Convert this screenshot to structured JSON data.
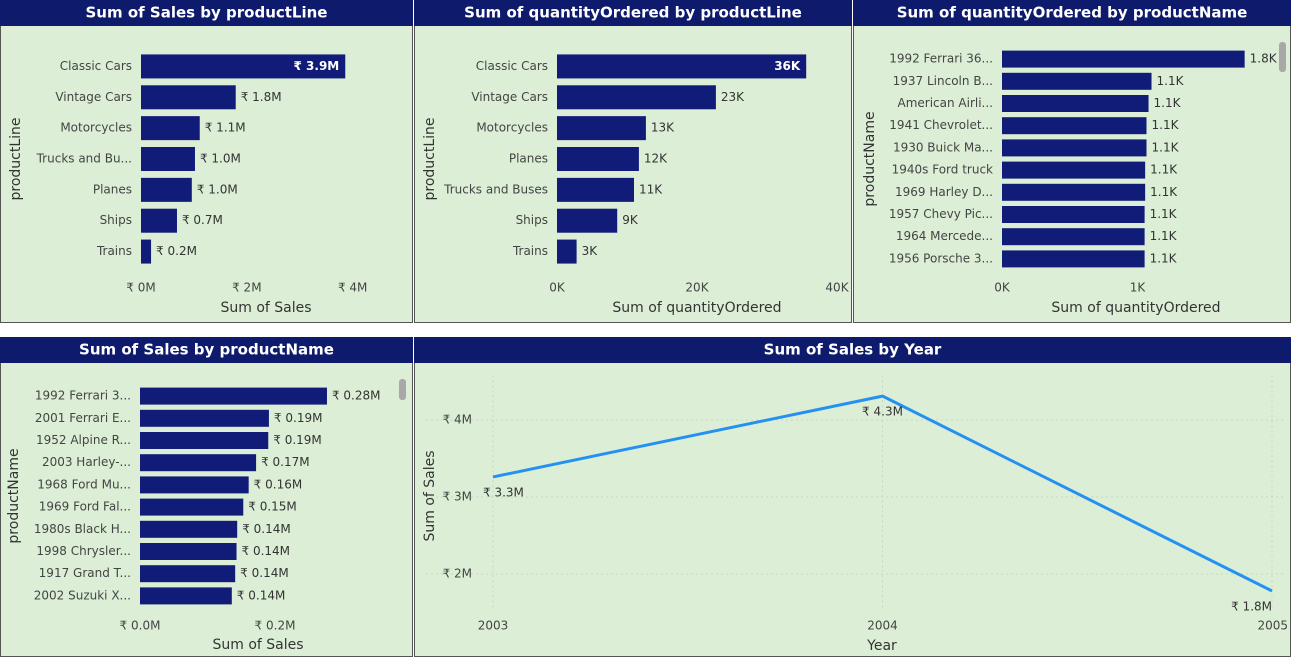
{
  "chart_data": [
    {
      "type": "bar",
      "orientation": "horizontal",
      "title": "Sum of Sales by productLine",
      "x_label": "Sum of Sales",
      "y_label": "productLine",
      "categories": [
        "Classic Cars",
        "Vintage Cars",
        "Motorcycles",
        "Trucks and Bu...",
        "Planes",
        "Ships",
        "Trains"
      ],
      "values": [
        3860000,
        1790000,
        1110000,
        1020000,
        960000,
        680000,
        190000
      ],
      "value_labels": [
        "₹ 3.9M",
        "₹ 1.8M",
        "₹ 1.1M",
        "₹ 1.0M",
        "₹ 1.0M",
        "₹ 0.7M",
        "₹ 0.2M"
      ],
      "color": "#101c78",
      "xlim": [
        0,
        4800000
      ],
      "xticks": [
        {
          "value": 0,
          "label": "₹ 0M"
        },
        {
          "value": 2000000,
          "label": "₹ 2M"
        },
        {
          "value": 4000000,
          "label": "₹ 4M"
        }
      ]
    },
    {
      "type": "bar",
      "orientation": "horizontal",
      "title": "Sum of quantityOrdered by productLine",
      "x_label": "Sum of quantityOrdered",
      "y_label": "productLine",
      "categories": [
        "Classic Cars",
        "Vintage Cars",
        "Motorcycles",
        "Planes",
        "Trucks and Buses",
        "Ships",
        "Trains"
      ],
      "values": [
        35600,
        22700,
        12700,
        11700,
        11000,
        8600,
        2800
      ],
      "value_labels": [
        "36K",
        "23K",
        "13K",
        "12K",
        "11K",
        "9K",
        "3K"
      ],
      "color": "#101c78",
      "xlim": [
        0,
        41000
      ],
      "xticks": [
        {
          "value": 0,
          "label": "0K"
        },
        {
          "value": 20000,
          "label": "20K"
        },
        {
          "value": 40000,
          "label": "40K"
        }
      ]
    },
    {
      "type": "bar",
      "orientation": "horizontal",
      "title": "Sum of quantityOrdered by productName",
      "x_label": "Sum of quantityOrdered",
      "y_label": "productName",
      "categories": [
        "1992 Ferrari 36...",
        "1937 Lincoln B...",
        "American Airli...",
        "1941 Chevrolet...",
        "1930 Buick Ma...",
        "1940s Ford truck",
        "1969 Harley D...",
        "1957 Chevy Pic...",
        "1964 Mercede...",
        "1956 Porsche 3..."
      ],
      "values": [
        1790,
        1103,
        1081,
        1066,
        1066,
        1056,
        1056,
        1052,
        1052,
        1052
      ],
      "value_labels": [
        "1.8K",
        "1.1K",
        "1.1K",
        "1.1K",
        "1.1K",
        "1.1K",
        "1.1K",
        "1.1K",
        "1.1K",
        "1.1K"
      ],
      "color": "#101c78",
      "xlim": [
        0,
        1800
      ],
      "xticks": [
        {
          "value": 0,
          "label": "0K"
        },
        {
          "value": 1000,
          "label": "1K"
        }
      ]
    },
    {
      "type": "bar",
      "orientation": "horizontal",
      "title": "Sum of Sales by productName",
      "x_label": "Sum of Sales",
      "y_label": "productName",
      "categories": [
        "1992 Ferrari 3...",
        "2001 Ferrari E...",
        "1952 Alpine R...",
        "2003 Harley-...",
        "1968 Ford Mu...",
        "1969 Ford Fal...",
        "1980s Black H...",
        "1998 Chrysler...",
        "1917 Grand T...",
        "2002 Suzuki X..."
      ],
      "values": [
        277000,
        191000,
        190000,
        172000,
        161000,
        153000,
        144000,
        143000,
        141000,
        136000
      ],
      "value_labels": [
        "₹ 0.28M",
        "₹ 0.19M",
        "₹ 0.19M",
        "₹ 0.17M",
        "₹ 0.16M",
        "₹ 0.15M",
        "₹ 0.14M",
        "₹ 0.14M",
        "₹ 0.14M",
        "₹ 0.14M"
      ],
      "color": "#101c78",
      "xlim": [
        0,
        280000
      ],
      "xticks": [
        {
          "value": 0,
          "label": "₹ 0.0M"
        },
        {
          "value": 200000,
          "label": "₹ 0.2M"
        }
      ]
    },
    {
      "type": "line",
      "title": "Sum of Sales by Year",
      "x_label": "Year",
      "y_label": "Sum of Sales",
      "categories": [
        "2003",
        "2004",
        "2005"
      ],
      "values": [
        3260000,
        4310000,
        1780000
      ],
      "value_labels": [
        "₹ 3.3M",
        "₹ 4.3M",
        "₹ 1.8M"
      ],
      "color": "#2491f2",
      "grid": true,
      "ylim": [
        1530000,
        4580000
      ],
      "yticks": [
        {
          "value": 2000000,
          "label": "₹ 2M"
        },
        {
          "value": 3000000,
          "label": "₹ 3M"
        },
        {
          "value": 4000000,
          "label": "₹ 4M"
        }
      ]
    }
  ]
}
